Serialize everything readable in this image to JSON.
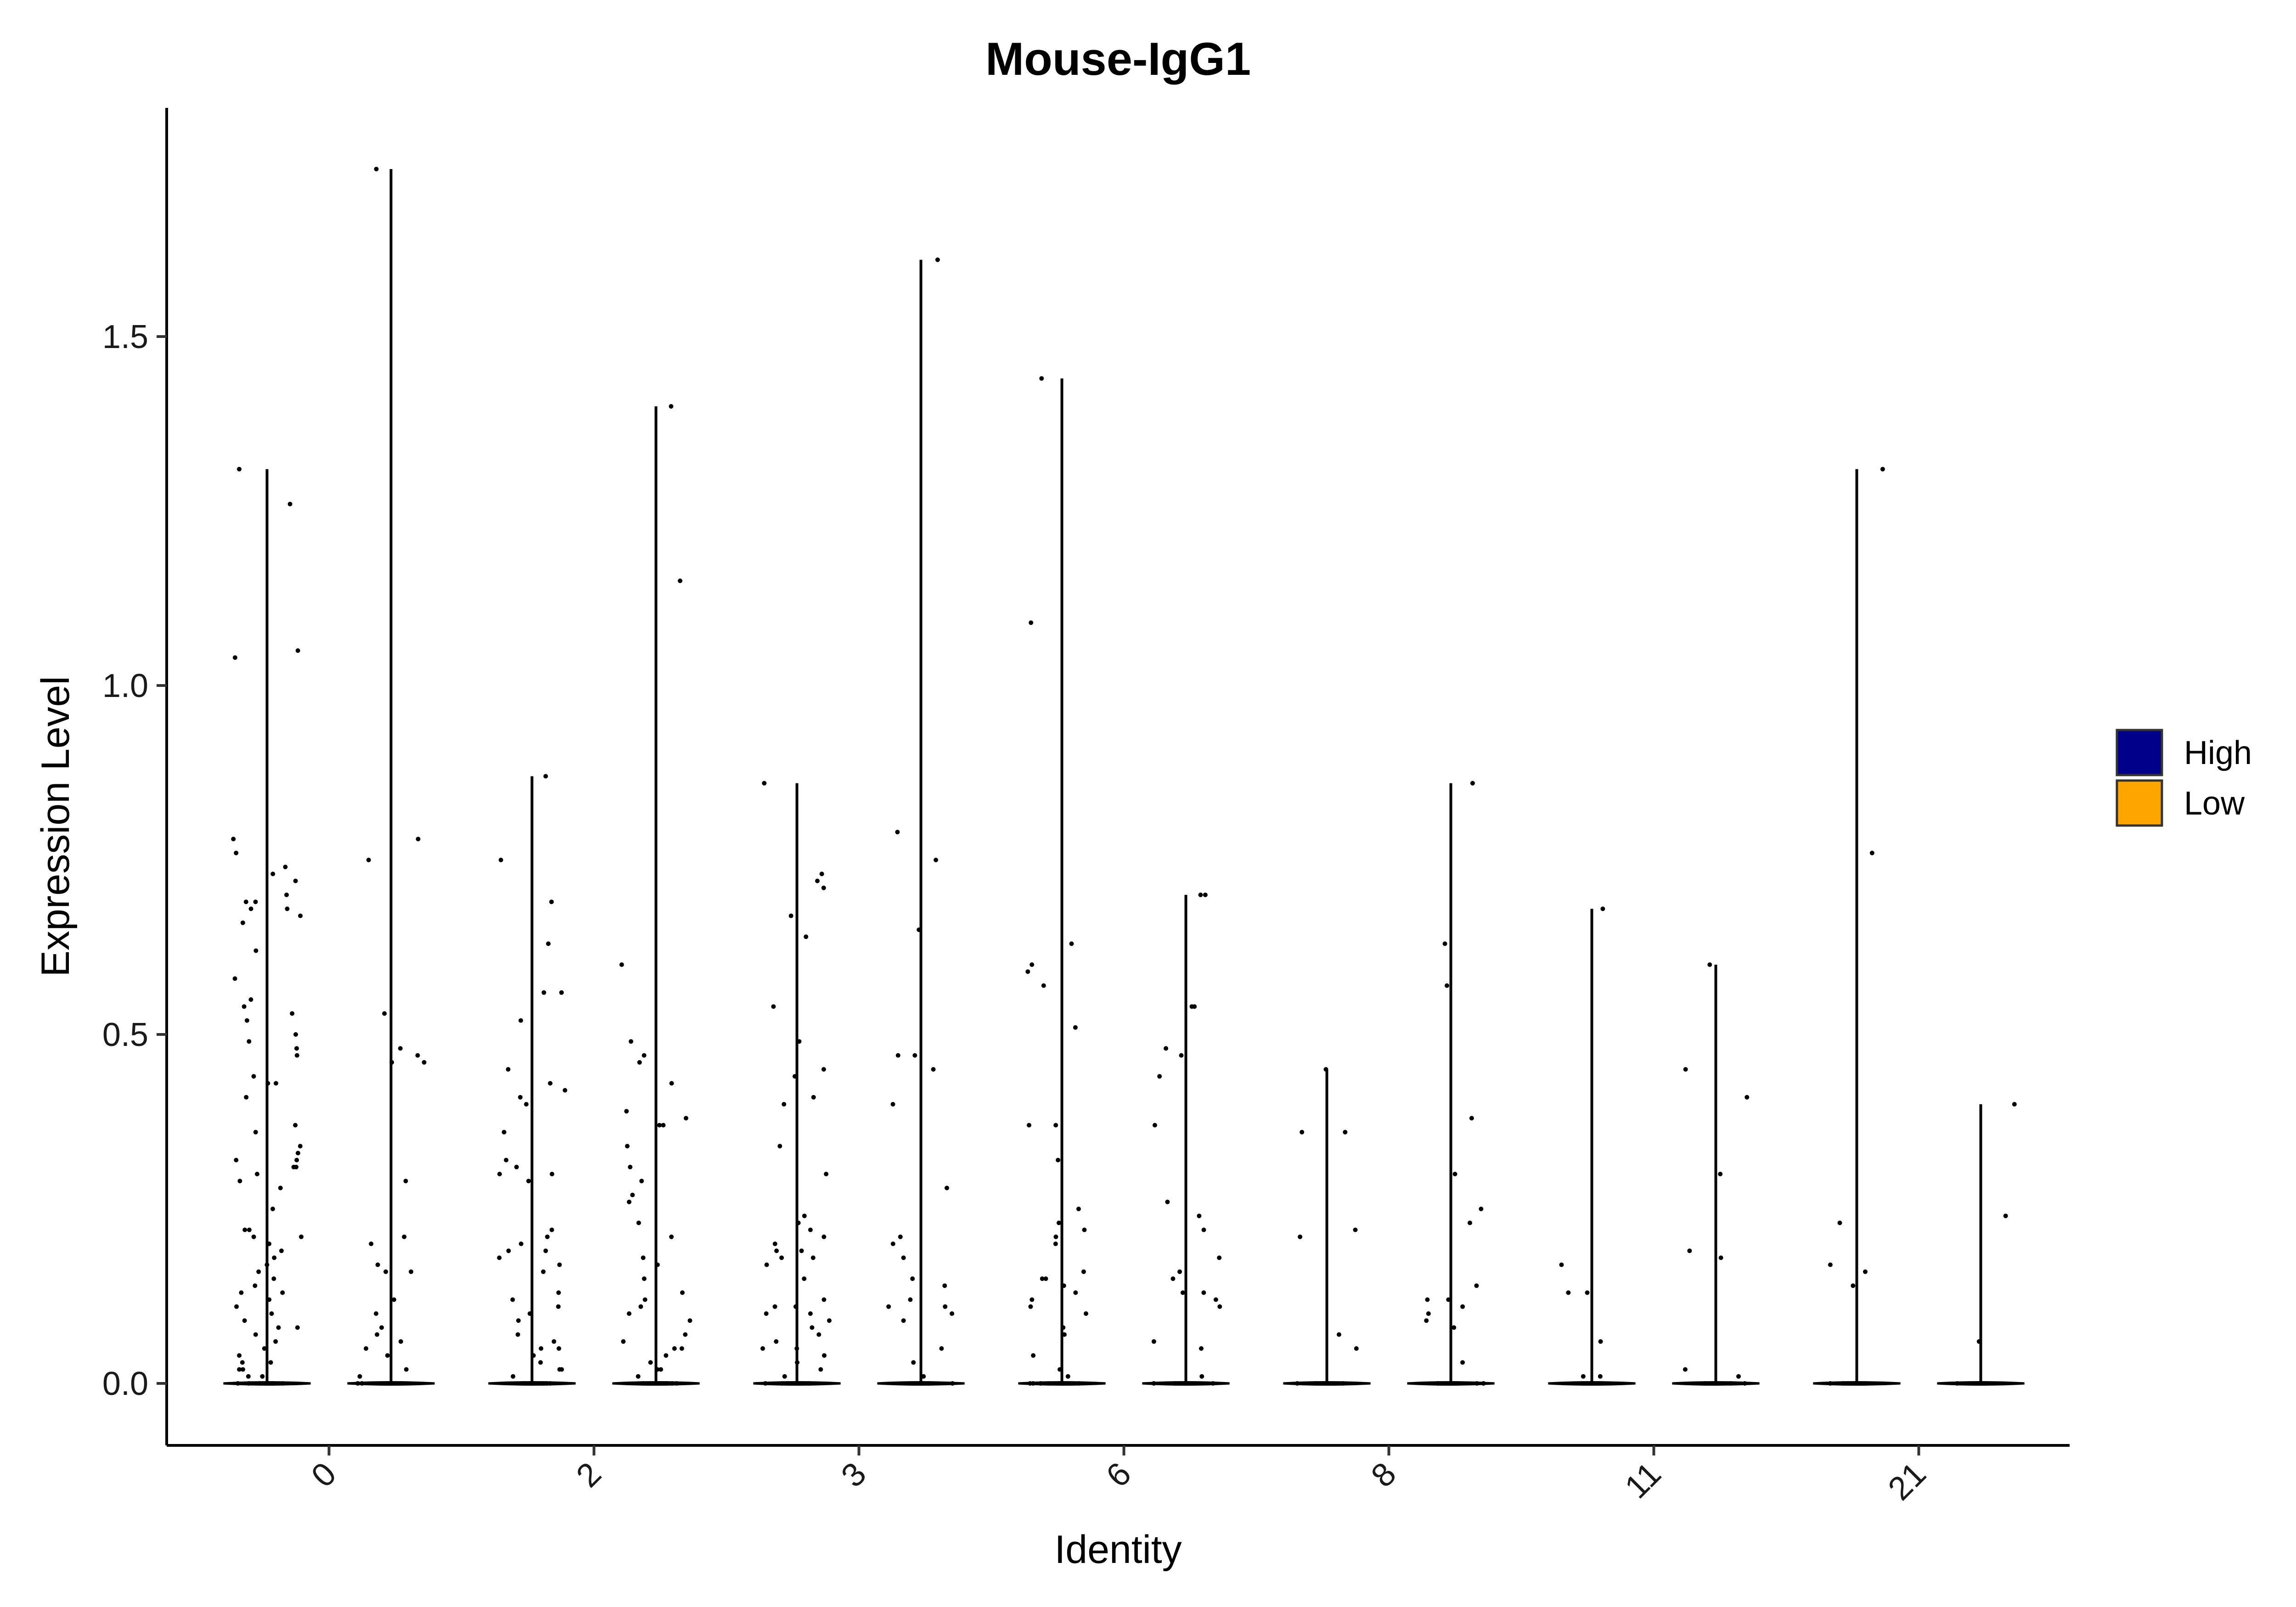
{
  "chart_data": {
    "type": "violin",
    "title": "Mouse-IgG1",
    "xlabel": "Identity",
    "ylabel": "Expression Level",
    "categories": [
      "0",
      "2",
      "3",
      "6",
      "8",
      "11",
      "21"
    ],
    "y_ticks": [
      "0.0",
      "0.5",
      "1.0",
      "1.5"
    ],
    "ylim": [
      -0.09,
      1.83
    ],
    "grid": false,
    "legend": {
      "position": "right",
      "entries": [
        {
          "label": "High",
          "color": "#00008B"
        },
        {
          "label": "Low",
          "color": "#FFA500"
        }
      ]
    },
    "series": [
      {
        "name": "High",
        "max_values": [
          1.31,
          0.87,
          0.86,
          1.44,
          0.45,
          0.68,
          1.31
        ]
      },
      {
        "name": "Low",
        "max_values": [
          1.74,
          1.4,
          1.61,
          0.7,
          0.86,
          0.6,
          0.4
        ]
      }
    ],
    "violins": [
      {
        "category": "0",
        "group": "High",
        "max": 1.31,
        "points": [
          1.31,
          1.26,
          1.05,
          1.04,
          0.78,
          0.76,
          0.74,
          0.73,
          0.72,
          0.7,
          0.69,
          0.69,
          0.68,
          0.68,
          0.67,
          0.66,
          0.62,
          0.58,
          0.55,
          0.54,
          0.53,
          0.52,
          0.5,
          0.49,
          0.48,
          0.47,
          0.44,
          0.43,
          0.43,
          0.41,
          0.37,
          0.36,
          0.34,
          0.33,
          0.32,
          0.32,
          0.31,
          0.31,
          0.3,
          0.29,
          0.28,
          0.25,
          0.22,
          0.22,
          0.21,
          0.21,
          0.2,
          0.19,
          0.18,
          0.17,
          0.16,
          0.15,
          0.14,
          0.13,
          0.13,
          0.12,
          0.11,
          0.1,
          0.09,
          0.08,
          0.08,
          0.07,
          0.06,
          0.05,
          0.04,
          0.03,
          0.03,
          0.02,
          0.02,
          0.01,
          0.01,
          0.0,
          0.0,
          0.0,
          0.0,
          0.0,
          0.0
        ]
      },
      {
        "category": "0",
        "group": "Low",
        "max": 1.74,
        "points": [
          1.74,
          0.78,
          0.75,
          0.53,
          0.48,
          0.47,
          0.46,
          0.46,
          0.29,
          0.21,
          0.2,
          0.17,
          0.16,
          0.16,
          0.12,
          0.1,
          0.08,
          0.07,
          0.06,
          0.05,
          0.04,
          0.02,
          0.01,
          0.0,
          0.0,
          0.0,
          0.0,
          0.0,
          0.0
        ]
      },
      {
        "category": "2",
        "group": "High",
        "max": 0.87,
        "points": [
          0.87,
          0.75,
          0.69,
          0.63,
          0.56,
          0.56,
          0.52,
          0.45,
          0.43,
          0.42,
          0.41,
          0.4,
          0.36,
          0.32,
          0.31,
          0.3,
          0.3,
          0.29,
          0.22,
          0.21,
          0.2,
          0.19,
          0.19,
          0.18,
          0.17,
          0.16,
          0.13,
          0.12,
          0.11,
          0.1,
          0.09,
          0.07,
          0.06,
          0.05,
          0.05,
          0.04,
          0.03,
          0.02,
          0.02,
          0.01,
          0.0,
          0.0,
          0.0,
          0.0,
          0.0
        ]
      },
      {
        "category": "2",
        "group": "Low",
        "max": 1.4,
        "points": [
          1.4,
          1.15,
          0.6,
          0.49,
          0.47,
          0.46,
          0.43,
          0.39,
          0.38,
          0.37,
          0.37,
          0.34,
          0.31,
          0.29,
          0.27,
          0.26,
          0.23,
          0.21,
          0.18,
          0.17,
          0.15,
          0.13,
          0.12,
          0.11,
          0.1,
          0.09,
          0.07,
          0.06,
          0.05,
          0.05,
          0.04,
          0.03,
          0.02,
          0.02,
          0.01,
          0.0,
          0.0,
          0.0,
          0.0,
          0.0
        ]
      },
      {
        "category": "3",
        "group": "High",
        "max": 0.86,
        "points": [
          0.86,
          0.73,
          0.72,
          0.71,
          0.67,
          0.64,
          0.54,
          0.49,
          0.45,
          0.44,
          0.41,
          0.4,
          0.34,
          0.3,
          0.24,
          0.23,
          0.22,
          0.21,
          0.2,
          0.19,
          0.19,
          0.18,
          0.18,
          0.17,
          0.15,
          0.12,
          0.11,
          0.11,
          0.1,
          0.1,
          0.09,
          0.08,
          0.07,
          0.06,
          0.05,
          0.05,
          0.04,
          0.03,
          0.02,
          0.01,
          0.0,
          0.0,
          0.0,
          0.0,
          0.0
        ]
      },
      {
        "category": "3",
        "group": "Low",
        "max": 1.61,
        "points": [
          1.61,
          0.79,
          0.75,
          0.65,
          0.47,
          0.47,
          0.45,
          0.4,
          0.28,
          0.21,
          0.2,
          0.18,
          0.15,
          0.14,
          0.12,
          0.11,
          0.11,
          0.1,
          0.09,
          0.05,
          0.03,
          0.01,
          0.0,
          0.0,
          0.0,
          0.0
        ]
      },
      {
        "category": "6",
        "group": "High",
        "max": 1.44,
        "points": [
          1.44,
          1.09,
          0.63,
          0.6,
          0.59,
          0.57,
          0.51,
          0.37,
          0.37,
          0.32,
          0.25,
          0.23,
          0.22,
          0.21,
          0.2,
          0.16,
          0.15,
          0.15,
          0.14,
          0.13,
          0.12,
          0.11,
          0.1,
          0.08,
          0.07,
          0.04,
          0.02,
          0.01,
          0.0,
          0.0,
          0.0,
          0.0
        ]
      },
      {
        "category": "6",
        "group": "Low",
        "max": 0.7,
        "points": [
          0.7,
          0.7,
          0.54,
          0.54,
          0.48,
          0.47,
          0.44,
          0.37,
          0.26,
          0.24,
          0.22,
          0.18,
          0.16,
          0.15,
          0.13,
          0.13,
          0.12,
          0.11,
          0.06,
          0.05,
          0.01,
          0.0,
          0.0,
          0.0,
          0.0
        ]
      },
      {
        "category": "8",
        "group": "High",
        "max": 0.45,
        "points": [
          0.45,
          0.36,
          0.36,
          0.22,
          0.21,
          0.07,
          0.05,
          0.0,
          0.0,
          0.0
        ]
      },
      {
        "category": "8",
        "group": "Low",
        "max": 0.86,
        "points": [
          0.86,
          0.63,
          0.57,
          0.38,
          0.3,
          0.25,
          0.23,
          0.14,
          0.12,
          0.12,
          0.11,
          0.1,
          0.09,
          0.08,
          0.03,
          0.0,
          0.0,
          0.0,
          0.0
        ]
      },
      {
        "category": "11",
        "group": "High",
        "max": 0.68,
        "points": [
          0.68,
          0.17,
          0.13,
          0.13,
          0.06,
          0.01,
          0.01,
          0.0,
          0.0,
          0.0
        ]
      },
      {
        "category": "11",
        "group": "Low",
        "max": 0.6,
        "points": [
          0.6,
          0.45,
          0.41,
          0.3,
          0.19,
          0.18,
          0.02,
          0.01,
          0.0,
          0.0,
          0.0
        ]
      },
      {
        "category": "21",
        "group": "High",
        "max": 1.31,
        "points": [
          1.31,
          0.76,
          0.23,
          0.17,
          0.16,
          0.14,
          0.0,
          0.0,
          0.0
        ]
      },
      {
        "category": "21",
        "group": "Low",
        "max": 0.4,
        "points": [
          0.4,
          0.24,
          0.06,
          0.0,
          0.0,
          0.0
        ]
      }
    ]
  }
}
